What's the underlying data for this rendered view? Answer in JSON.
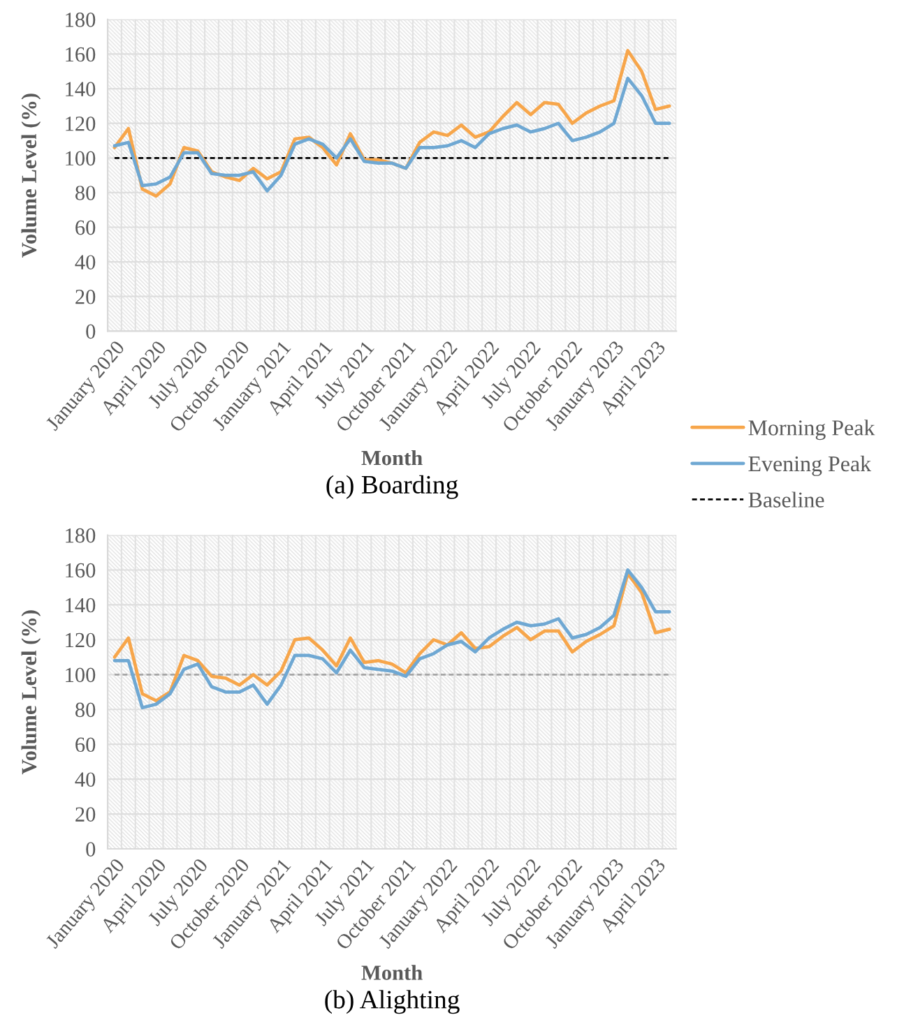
{
  "chart_data": [
    {
      "type": "line",
      "title": "(a) Boarding",
      "xlabel": "Month",
      "ylabel": "Volume Level (%)",
      "categories": [
        "January 2020",
        null,
        null,
        "April 2020",
        null,
        null,
        "July 2020",
        null,
        null,
        "October 2020",
        null,
        null,
        "January 2021",
        null,
        null,
        "April 2021",
        null,
        null,
        "July 2021",
        null,
        null,
        "October 2021",
        null,
        null,
        "January 2022",
        null,
        null,
        "April 2022",
        null,
        null,
        "July 2022",
        null,
        null,
        "October 2022",
        null,
        null,
        "January 2023",
        null,
        null,
        "April 2023",
        null
      ],
      "series": [
        {
          "name": "Morning Peak",
          "color": "#f7a64b",
          "values": [
            106,
            117,
            82,
            78,
            85,
            106,
            104,
            92,
            89,
            87,
            94,
            88,
            92,
            111,
            112,
            106,
            96,
            114,
            99,
            99,
            97,
            94,
            109,
            115,
            113,
            119,
            112,
            115,
            124,
            132,
            125,
            132,
            131,
            120,
            126,
            130,
            133,
            162,
            150,
            128,
            130
          ]
        },
        {
          "name": "Evening Peak",
          "color": "#6fa8d3",
          "values": [
            107,
            109,
            84,
            85,
            89,
            103,
            103,
            91,
            90,
            90,
            92,
            81,
            90,
            108,
            111,
            108,
            100,
            111,
            98,
            97,
            97,
            94,
            106,
            106,
            107,
            110,
            106,
            114,
            117,
            119,
            115,
            117,
            120,
            110,
            112,
            115,
            120,
            146,
            136,
            120,
            120
          ]
        }
      ],
      "ylim": [
        0,
        180
      ],
      "yticks": [
        0,
        20,
        40,
        60,
        80,
        100,
        120,
        140,
        160,
        180
      ],
      "ref_lines": [
        {
          "axis": "y",
          "value": 100,
          "label": "Baseline",
          "color": "#000000",
          "line_style": "dashed"
        }
      ],
      "grid": true,
      "legend": "right",
      "marker": "none",
      "line_style": "solid"
    },
    {
      "type": "line",
      "title": "(b) Alighting",
      "xlabel": "Month",
      "ylabel": "Volume Level (%)",
      "categories": [
        "January 2020",
        null,
        null,
        "April 2020",
        null,
        null,
        "July 2020",
        null,
        null,
        "October 2020",
        null,
        null,
        "January 2021",
        null,
        null,
        "April 2021",
        null,
        null,
        "July 2021",
        null,
        null,
        "October 2021",
        null,
        null,
        "January 2022",
        null,
        null,
        "April 2022",
        null,
        null,
        "July 2022",
        null,
        null,
        "October 2022",
        null,
        null,
        "January 2023",
        null,
        null,
        "April 2023",
        null
      ],
      "series": [
        {
          "color": "#f7a64b",
          "values": [
            110,
            121,
            89,
            85,
            90,
            111,
            108,
            99,
            98,
            94,
            100,
            94,
            102,
            120,
            121,
            114,
            105,
            121,
            107,
            108,
            106,
            101,
            112,
            120,
            117,
            124,
            115,
            116,
            122,
            127,
            120,
            125,
            125,
            113,
            119,
            123,
            128,
            158,
            147,
            124,
            126
          ]
        },
        {
          "color": "#6fa8d3",
          "values": [
            108,
            108,
            81,
            83,
            89,
            103,
            106,
            93,
            90,
            90,
            94,
            83,
            94,
            111,
            111,
            109,
            101,
            114,
            104,
            103,
            102,
            99,
            109,
            112,
            117,
            119,
            113,
            121,
            126,
            130,
            128,
            129,
            132,
            121,
            123,
            127,
            134,
            160,
            150,
            136,
            136
          ]
        }
      ],
      "ylim": [
        0,
        180
      ],
      "yticks": [
        0,
        20,
        40,
        60,
        80,
        100,
        120,
        140,
        160,
        180
      ],
      "ref_lines": [
        {
          "axis": "y",
          "value": 100,
          "color": "#a6a6a6",
          "line_style": "dashed"
        }
      ],
      "grid": true,
      "legend": false,
      "marker": "none",
      "line_style": "solid"
    }
  ]
}
